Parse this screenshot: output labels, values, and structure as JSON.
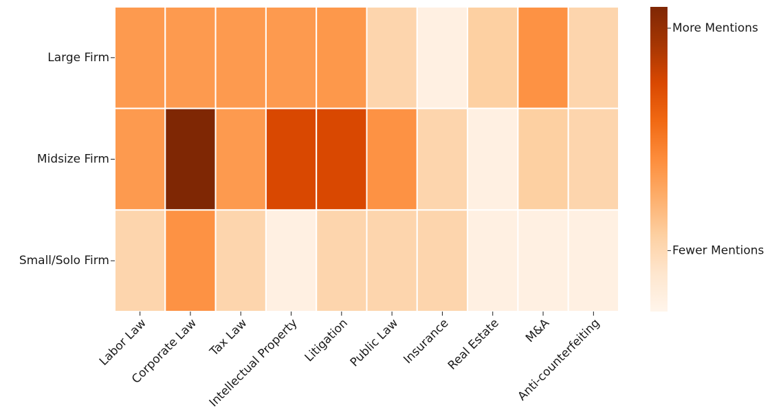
{
  "chart_data": {
    "type": "heatmap",
    "title": "",
    "xlabel": "",
    "ylabel": "",
    "rows": [
      "Large Firm",
      "Midsize Firm",
      "Small/Solo Firm"
    ],
    "columns": [
      "Labor Law",
      "Corporate Law",
      "Tax Law",
      "Intellectual Property",
      "Litigation",
      "Public Law",
      "Insurance",
      "Real Estate",
      "M&A",
      "Anti-counterfeiting"
    ],
    "values": [
      [
        0.45,
        0.45,
        0.45,
        0.45,
        0.46,
        0.22,
        0.04,
        0.25,
        0.48,
        0.22
      ],
      [
        0.45,
        1.0,
        0.45,
        0.75,
        0.75,
        0.48,
        0.22,
        0.04,
        0.25,
        0.22
      ],
      [
        0.22,
        0.48,
        0.22,
        0.04,
        0.22,
        0.22,
        0.22,
        0.04,
        0.04,
        0.04
      ]
    ],
    "vmin": 0,
    "vmax": 1,
    "colormap": "Oranges",
    "colorbar": {
      "labels": [
        "More Mentions",
        "Fewer Mentions"
      ],
      "label_values": [
        0.93,
        0.2
      ],
      "colors": [
        "#fff5eb",
        "#fee6ce",
        "#fdd0a2",
        "#fdae6b",
        "#fd8d3c",
        "#f16913",
        "#d94801",
        "#a63603",
        "#7f2704"
      ]
    },
    "grid": false,
    "legend_position": "right"
  }
}
